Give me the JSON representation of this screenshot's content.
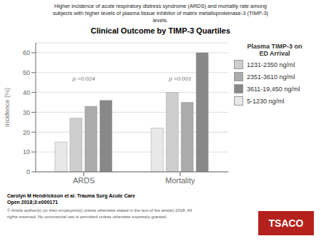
{
  "chart_data": {
    "type": "bar",
    "title": "Clinical Outcome by TIMP-3 Quartiles",
    "subtitle": [
      "Higher incidence of acute respiratory distress syndrome (ARDS) and mortality rate among",
      "subjects with higher levels of plasma tissue inhibitor of matrix metalloproteinase-3 (TIMP-3)",
      "levels."
    ],
    "ylabel": "Incidence (%)",
    "categories": [
      "ARDS",
      "Mortality"
    ],
    "legend_title": "Plasma TIMP-3 on\nED Arrival",
    "series": [
      {
        "name": "5-1230 ng/ml",
        "color": "#e8e8e8",
        "values": [
          15,
          22
        ]
      },
      {
        "name": "1231-2350 ng/ml",
        "color": "#cecece",
        "values": [
          27,
          40
        ]
      },
      {
        "name": "2351-3610 ng/ml",
        "color": "#ababab",
        "values": [
          33,
          35
        ]
      },
      {
        "name": "3611-19,450 ng/ml",
        "color": "#888888",
        "values": [
          36,
          60
        ]
      }
    ],
    "ylim": [
      0,
      65
    ],
    "yticks": [
      0,
      10,
      20,
      30,
      40,
      50,
      60
    ],
    "grid": true,
    "legend": "right",
    "annotations": [
      {
        "category": "ARDS",
        "y": 44,
        "text": "p =0.024"
      },
      {
        "category": "Mortality",
        "y": 44,
        "text": "p =0.001"
      }
    ],
    "footnotes": [
      "Carolyn M Hendrickson et al. Trauma Surg Acute Care",
      "Open 2018;3:e000171",
      "© Article author(s) (or their employer(s)) unless otherwise stated in the text of the article) 2018. All",
      "rights reserved. No commercial use is permitted unless otherwise expressly granted."
    ],
    "logo": {
      "text": "TSACO",
      "color": "#b5211d"
    }
  }
}
